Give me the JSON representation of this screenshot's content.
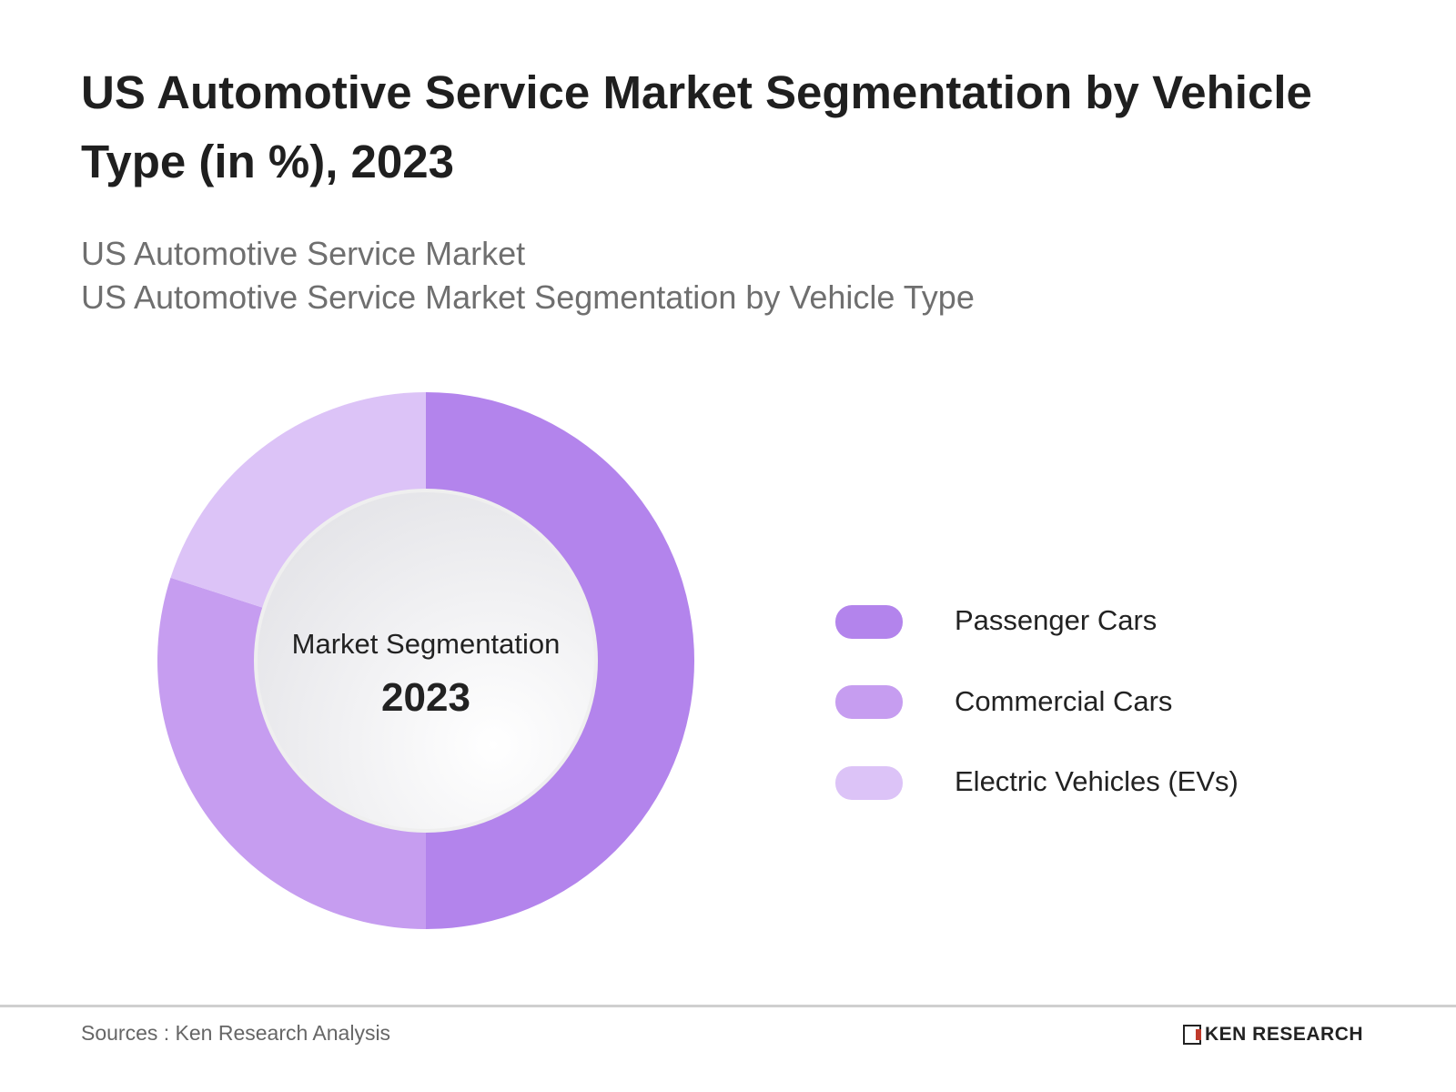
{
  "title": "US Automotive Service Market Segmentation by Vehicle Type (in %), 2023",
  "subtitle_lines": [
    "US Automotive Service Market",
    "US Automotive Service Market Segmentation by Vehicle Type"
  ],
  "chart_data": {
    "type": "pie",
    "variant": "donut",
    "center_label": "Market Segmentation",
    "center_value": "2023",
    "legend_position": "right",
    "categories": [
      "Passenger Cars",
      "Commercial Cars",
      "Electric Vehicles (EVs)"
    ],
    "values": [
      50,
      30,
      20
    ],
    "colors": [
      "#b384ec",
      "#c69df0",
      "#dcc3f7"
    ]
  },
  "footer": {
    "source": "Sources : Ken Research Analysis",
    "logo_text": "KEN RESEARCH"
  }
}
